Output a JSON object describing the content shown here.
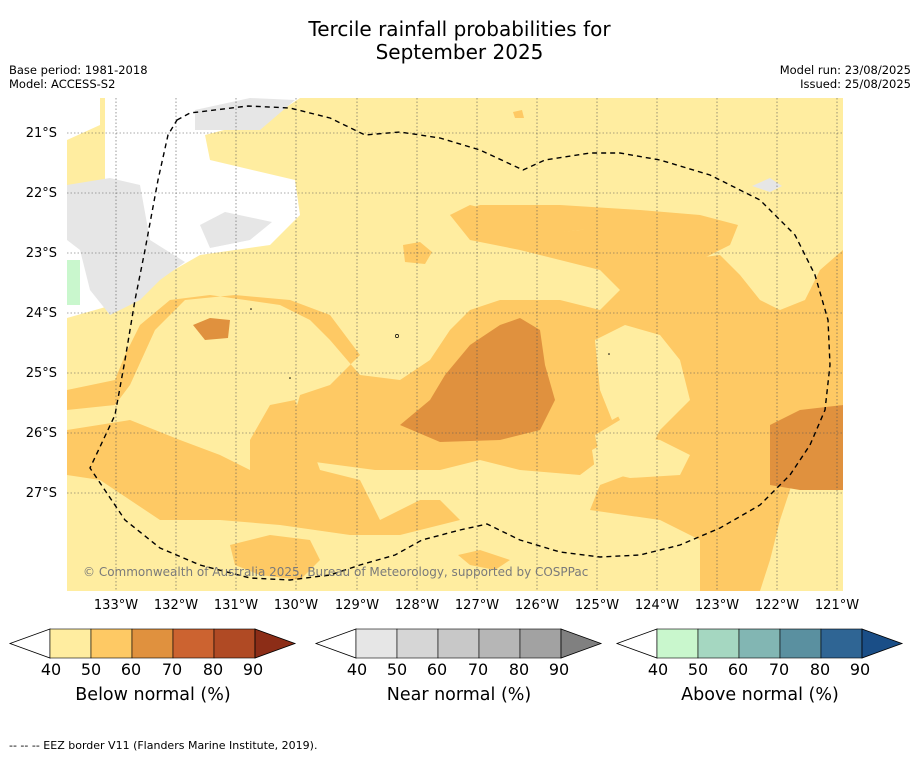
{
  "title_line1": "Tercile rainfall probabilities for",
  "title_line2": "September 2025",
  "meta_left": [
    "Base period: 1981-2018",
    "Model: ACCESS-S2"
  ],
  "meta_right": [
    "Model run: 23/08/2025",
    "Issued: 25/08/2025"
  ],
  "lat_labels": [
    "21°S",
    "22°S",
    "23°S",
    "24°S",
    "25°S",
    "26°S",
    "27°S"
  ],
  "lon_labels": [
    "133°W",
    "132°W",
    "131°W",
    "130°W",
    "129°W",
    "128°W",
    "127°W",
    "126°W",
    "125°W",
    "124°W",
    "123°W",
    "122°W",
    "121°W"
  ],
  "copyright": "© Commonwealth of Australia 2025, Bureau of Meteorology, supported by COSPPac",
  "legends": {
    "below": {
      "title": "Below normal (%)",
      "ticks": [
        "40",
        "50",
        "60",
        "70",
        "80",
        "90"
      ],
      "colors": [
        "#ffeda0",
        "#fec964",
        "#e0913e",
        "#cc6330",
        "#b04a24",
        "#8c2d17"
      ]
    },
    "near": {
      "title": "Near normal (%)",
      "ticks": [
        "40",
        "50",
        "60",
        "70",
        "80",
        "90"
      ],
      "colors": [
        "#e6e6e6",
        "#d6d6d6",
        "#c8c8c8",
        "#b6b6b6",
        "#a2a2a2",
        "#808080"
      ]
    },
    "above": {
      "title": "Above normal (%)",
      "ticks": [
        "40",
        "50",
        "60",
        "70",
        "80",
        "90"
      ],
      "colors": [
        "#c9f7cd",
        "#a5d7c1",
        "#82b6b3",
        "#5a90a0",
        "#2f6594",
        "#1a4e87"
      ]
    }
  },
  "footer": "--  --  -- EEZ border V11 (Flanders Marine Institute, 2019)."
}
